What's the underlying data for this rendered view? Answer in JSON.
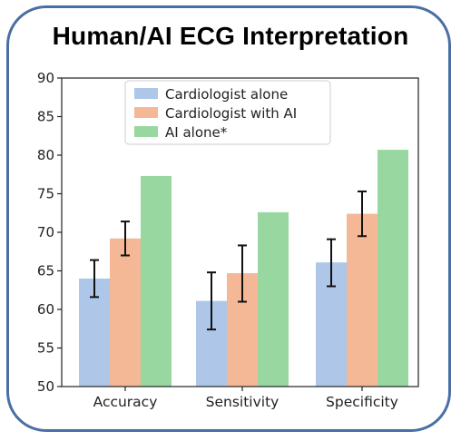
{
  "chart_data": {
    "type": "bar",
    "title": "Human/AI ECG Interpretation",
    "categories": [
      "Accuracy",
      "Sensitivity",
      "Specificity"
    ],
    "ylim": [
      50,
      90
    ],
    "yticks": [
      50,
      55,
      60,
      65,
      70,
      75,
      80,
      85,
      90
    ],
    "series": [
      {
        "name": "Cardiologist alone",
        "color": "#aec7e8",
        "values": [
          64.0,
          61.1,
          66.1
        ],
        "err_low": [
          61.6,
          57.4,
          63.0
        ],
        "err_high": [
          66.4,
          64.8,
          69.1
        ]
      },
      {
        "name": "Cardiologist with AI",
        "color": "#f4b896",
        "values": [
          69.2,
          64.7,
          72.4
        ],
        "err_low": [
          67.0,
          61.0,
          69.5
        ],
        "err_high": [
          71.4,
          68.3,
          75.3
        ]
      },
      {
        "name": "AI alone*",
        "color": "#98d8a0",
        "values": [
          77.3,
          72.6,
          80.7
        ]
      }
    ],
    "legend_position": "top-center"
  }
}
